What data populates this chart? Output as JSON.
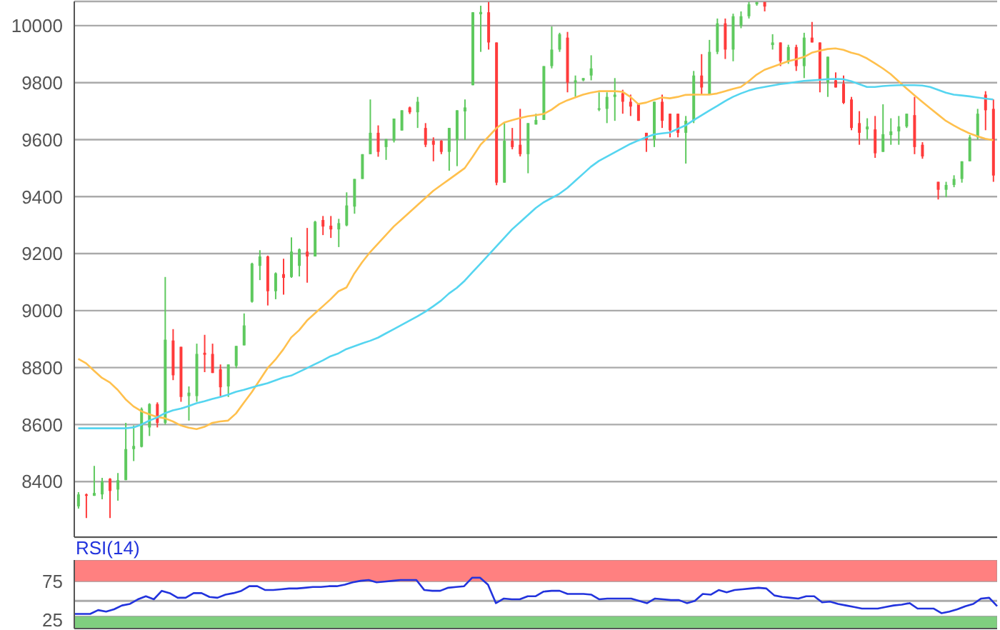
{
  "chart_data": [
    {
      "type": "candlestick",
      "categories": [
        null,
        null,
        null,
        null,
        null,
        null,
        null,
        null,
        null,
        null,
        null,
        null,
        null,
        null,
        null,
        null,
        null,
        null,
        null,
        null,
        null,
        null,
        null,
        null,
        null,
        null,
        null,
        null,
        null,
        null,
        null,
        null,
        null,
        null,
        null,
        null,
        null,
        null,
        null,
        null,
        null,
        null,
        null,
        null,
        null,
        null,
        null,
        null,
        null,
        null,
        null,
        null,
        null,
        null,
        null,
        null,
        null,
        null,
        null,
        null,
        null,
        null,
        null,
        null,
        null,
        null,
        null,
        null,
        null,
        null,
        null,
        null,
        null,
        null,
        null,
        null,
        null,
        null,
        null,
        null,
        null,
        null,
        null,
        null,
        null,
        null,
        null,
        null,
        null,
        null,
        null,
        null,
        null,
        null,
        null,
        null,
        null,
        null,
        null,
        null,
        null,
        null,
        null,
        null,
        null,
        null,
        null,
        null,
        null,
        null,
        null,
        null,
        null,
        null,
        null,
        null,
        null
      ],
      "ohlc": [
        [
          8313,
          8363,
          8305,
          8355
        ],
        [
          8355,
          8358,
          8272,
          8350
        ],
        [
          8350,
          8455,
          8350,
          8360
        ],
        [
          8355,
          8413,
          8338,
          8400
        ],
        [
          8410,
          8412,
          8272,
          8367
        ],
        [
          8372,
          8430,
          8333,
          8405
        ],
        [
          8405,
          8606,
          8405,
          8514
        ],
        [
          8514,
          8597,
          8472,
          8525
        ],
        [
          8522,
          8660,
          8520,
          8655
        ],
        [
          8590,
          8675,
          8560,
          8672
        ],
        [
          8672,
          8678,
          8590,
          8606
        ],
        [
          8606,
          9118,
          8600,
          8898
        ],
        [
          8895,
          8935,
          8756,
          8773
        ],
        [
          8873,
          8873,
          8680,
          8697
        ],
        [
          8700,
          8734,
          8614,
          8712
        ],
        [
          8700,
          8884,
          8680,
          8848
        ],
        [
          8852,
          8915,
          8784,
          8845
        ],
        [
          8848,
          8884,
          8781,
          8781
        ],
        [
          8794,
          8811,
          8697,
          8731
        ],
        [
          8734,
          8811,
          8697,
          8811
        ],
        [
          8806,
          8876,
          8798,
          8876
        ],
        [
          8878,
          8990,
          8878,
          8948
        ],
        [
          9031,
          9168,
          9028,
          9165
        ],
        [
          9157,
          9212,
          9107,
          9190
        ],
        [
          9190,
          9193,
          9018,
          9068
        ],
        [
          9068,
          9134,
          9040,
          9131
        ],
        [
          9128,
          9182,
          9056,
          9115
        ],
        [
          9118,
          9257,
          9115,
          9207
        ],
        [
          9157,
          9218,
          9120,
          9215
        ],
        [
          9207,
          9290,
          9098,
          9190
        ],
        [
          9190,
          9315,
          9190,
          9312
        ],
        [
          9318,
          9332,
          9265,
          9295
        ],
        [
          9298,
          9332,
          9255,
          9285
        ],
        [
          9285,
          9322,
          9223,
          9307
        ],
        [
          9299,
          9415,
          9296,
          9369
        ],
        [
          9365,
          9462,
          9340,
          9462
        ],
        [
          9462,
          9549,
          9462,
          9549
        ],
        [
          9549,
          9741,
          9549,
          9624
        ],
        [
          9624,
          9650,
          9540,
          9557
        ],
        [
          9574,
          9602,
          9529,
          9602
        ],
        [
          9596,
          9674,
          9590,
          9674
        ],
        [
          9632,
          9703,
          9632,
          9703
        ],
        [
          9713,
          9716,
          9690,
          9696
        ],
        [
          9696,
          9750,
          9641,
          9733
        ],
        [
          9641,
          9658,
          9574,
          9582
        ],
        [
          9596,
          9608,
          9524,
          9582
        ],
        [
          9596,
          9598,
          9549,
          9557
        ],
        [
          9557,
          9641,
          9491,
          9641
        ],
        [
          9599,
          9703,
          9507,
          9703
        ],
        [
          9699,
          9741,
          9599,
          9713
        ],
        [
          9791,
          10047,
          9791,
          10047
        ],
        [
          10040,
          10070,
          9908,
          10048
        ],
        [
          10047,
          10083,
          9916,
          9941
        ],
        [
          9941,
          9941,
          9440,
          9449
        ],
        [
          9449,
          9658,
          9449,
          9596
        ],
        [
          9596,
          9641,
          9566,
          9574
        ],
        [
          9582,
          9708,
          9541,
          9549
        ],
        [
          9549,
          9658,
          9482,
          9658
        ],
        [
          9653,
          9691,
          9653,
          9669
        ],
        [
          9669,
          9858,
          9669,
          9858
        ],
        [
          9858,
          9997,
          9850,
          9916
        ],
        [
          9916,
          9975,
          9908,
          9970
        ],
        [
          9958,
          9978,
          9766,
          9800
        ],
        [
          9800,
          9825,
          9750,
          9808
        ],
        [
          9808,
          9816,
          9805,
          9816
        ],
        [
          9825,
          9896,
          9808,
          9850
        ],
        [
          9705,
          9766,
          9700,
          9710
        ],
        [
          9708,
          9766,
          9658,
          9750
        ],
        [
          9750,
          9816,
          9666,
          9758
        ],
        [
          9763,
          9775,
          9691,
          9733
        ],
        [
          9733,
          9758,
          9683,
          9716
        ],
        [
          9724,
          9724,
          9666,
          9666
        ],
        [
          9624,
          9624,
          9557,
          9599
        ],
        [
          9599,
          9733,
          9574,
          9733
        ],
        [
          9733,
          9758,
          9641,
          9666
        ],
        [
          9691,
          9691,
          9608,
          9633
        ],
        [
          9691,
          9691,
          9608,
          9624
        ],
        [
          9624,
          9683,
          9516,
          9666
        ],
        [
          9666,
          9841,
          9658,
          9825
        ],
        [
          9825,
          9900,
          9758,
          9783
        ],
        [
          9758,
          9950,
          9758,
          9908
        ],
        [
          9908,
          10025,
          9900,
          10008
        ],
        [
          10008,
          10025,
          9883,
          9916
        ],
        [
          9916,
          10042,
          9875,
          10033
        ],
        [
          10000,
          10050,
          9991,
          10033
        ],
        [
          10033,
          10083,
          10025,
          10075
        ],
        [
          10075,
          10083,
          10070,
          10083
        ],
        [
          10083,
          10083,
          10050,
          10067
        ],
        [
          9932,
          9970,
          9916,
          9941
        ],
        [
          9941,
          9941,
          9858,
          9875
        ],
        [
          9875,
          9933,
          9866,
          9925
        ],
        [
          9925,
          9933,
          9841,
          9858
        ],
        [
          9858,
          9975,
          9816,
          9958
        ],
        [
          9958,
          10013,
          9941,
          9941
        ],
        [
          9941,
          9941,
          9766,
          9808
        ],
        [
          9800,
          9891,
          9750,
          9891
        ],
        [
          9808,
          9836,
          9783,
          9783
        ],
        [
          9796,
          9825,
          9725,
          9729
        ],
        [
          9741,
          9750,
          9633,
          9641
        ],
        [
          9658,
          9700,
          9582,
          9624
        ],
        [
          9636,
          9675,
          9600,
          9646
        ],
        [
          9636,
          9683,
          9536,
          9552
        ],
        [
          9557,
          9724,
          9557,
          9619
        ],
        [
          9616,
          9675,
          9582,
          9629
        ],
        [
          9629,
          9683,
          9582,
          9646
        ],
        [
          9646,
          9691,
          9641,
          9691
        ],
        [
          9686,
          9750,
          9549,
          9574
        ],
        [
          9582,
          9591,
          9533,
          9541
        ],
        null,
        [
          9452,
          9452,
          9390,
          9424
        ],
        [
          9424,
          9452,
          9398,
          9441
        ],
        [
          9441,
          9475,
          9433,
          9462
        ],
        [
          9462,
          9524,
          9449,
          9524
        ],
        [
          9524,
          9616,
          9524,
          9608
        ],
        [
          9608,
          9708,
          9600,
          9691
        ],
        [
          9758,
          9770,
          9633,
          9703
        ],
        [
          9708,
          9741,
          9452,
          9474
        ]
      ],
      "colors": [
        "#5ec95e",
        "#ff3b3b",
        "#5ec95e",
        "#5ec95e",
        "#ff3b3b",
        "#5ec95e",
        "#5ec95e",
        "#5ec95e",
        "#5ec95e",
        "#5ec95e",
        "#ff3b3b",
        "#5ec95e",
        "#ff3b3b",
        "#ff3b3b",
        "#5ec95e",
        "#5ec95e",
        "#ff3b3b",
        "#ff3b3b",
        "#ff3b3b",
        "#5ec95e",
        "#5ec95e",
        "#5ec95e",
        "#5ec95e",
        "#5ec95e",
        "#ff3b3b",
        "#5ec95e",
        "#ff3b3b",
        "#5ec95e",
        "#5ec95e",
        "#ff3b3b",
        "#5ec95e",
        "#ff3b3b",
        "#ff3b3b",
        "#5ec95e",
        "#5ec95e",
        "#5ec95e",
        "#5ec95e",
        "#5ec95e",
        "#ff3b3b",
        "#5ec95e",
        "#5ec95e",
        "#5ec95e",
        "#ff3b3b",
        "#5ec95e",
        "#ff3b3b",
        "#ff3b3b",
        "#ff3b3b",
        "#5ec95e",
        "#5ec95e",
        "#5ec95e",
        "#5ec95e",
        "#5ec95e",
        "#ff3b3b",
        "#ff3b3b",
        "#5ec95e",
        "#ff3b3b",
        "#ff3b3b",
        "#5ec95e",
        "#5ec95e",
        "#5ec95e",
        "#5ec95e",
        "#5ec95e",
        "#ff3b3b",
        "#5ec95e",
        "#5ec95e",
        "#5ec95e",
        "#5ec95e",
        "#5ec95e",
        "#5ec95e",
        "#ff3b3b",
        "#ff3b3b",
        "#ff3b3b",
        "#ff3b3b",
        "#5ec95e",
        "#ff3b3b",
        "#ff3b3b",
        "#ff3b3b",
        "#5ec95e",
        "#5ec95e",
        "#ff3b3b",
        "#5ec95e",
        "#5ec95e",
        "#ff3b3b",
        "#5ec95e",
        "#5ec95e",
        "#5ec95e",
        "#5ec95e",
        "#ff3b3b",
        "#5ec95e",
        "#ff3b3b",
        "#5ec95e",
        "#ff3b3b",
        "#5ec95e",
        "#ff3b3b",
        "#ff3b3b",
        "#5ec95e",
        "#ff3b3b",
        "#ff3b3b",
        "#ff3b3b",
        "#ff3b3b",
        "#5ec95e",
        "#ff3b3b",
        "#5ec95e",
        "#5ec95e",
        "#5ec95e",
        "#5ec95e",
        "#ff3b3b",
        "#ff3b3b",
        null,
        "#ff3b3b",
        "#5ec95e",
        "#5ec95e",
        "#5ec95e",
        "#5ec95e",
        "#5ec95e",
        "#ff3b3b",
        "#ff3b3b"
      ],
      "series": [
        {
          "type": "line",
          "color": "#ffc04d",
          "values": [
            8831,
            8815,
            8789,
            8764,
            8748,
            8722,
            8689,
            8664,
            8647,
            8636,
            8627,
            8622,
            8611,
            8597,
            8589,
            8584,
            8592,
            8606,
            8611,
            8614,
            8639,
            8677,
            8714,
            8756,
            8798,
            8828,
            8864,
            8906,
            8931,
            8965,
            8990,
            9015,
            9040,
            9068,
            9081,
            9130,
            9170,
            9205,
            9235,
            9265,
            9295,
            9320,
            9345,
            9370,
            9395,
            9420,
            9440,
            9460,
            9480,
            9500,
            9540,
            9582,
            9610,
            9640,
            9660,
            9668,
            9676,
            9682,
            9686,
            9690,
            9705,
            9725,
            9738,
            9748,
            9758,
            9765,
            9770,
            9770,
            9770,
            9768,
            9750,
            9725,
            9730,
            9740,
            9748,
            9745,
            9750,
            9757,
            9758,
            9758,
            9758,
            9762,
            9770,
            9778,
            9785,
            9805,
            9828,
            9845,
            9855,
            9865,
            9875,
            9882,
            9890,
            9905,
            9912,
            9918,
            9920,
            9915,
            9905,
            9898,
            9885,
            9868,
            9850,
            9830,
            9805,
            9780,
            9756,
            9733,
            9710,
            9688,
            9666,
            9650,
            9635,
            9622,
            9612,
            9603,
            9598
          ]
        },
        {
          "type": "line",
          "color": "#55d5f0",
          "values": [
            8587,
            8587,
            8587,
            8587,
            8587,
            8587,
            8587,
            8590,
            8600,
            8614,
            8625,
            8640,
            8650,
            8656,
            8665,
            8675,
            8682,
            8690,
            8697,
            8705,
            8715,
            8722,
            8730,
            8738,
            8745,
            8755,
            8765,
            8772,
            8785,
            8798,
            8812,
            8825,
            8840,
            8850,
            8865,
            8875,
            8885,
            8894,
            8905,
            8920,
            8935,
            8950,
            8965,
            8980,
            8996,
            9015,
            9035,
            9060,
            9080,
            9105,
            9135,
            9165,
            9195,
            9225,
            9255,
            9285,
            9310,
            9335,
            9360,
            9380,
            9395,
            9410,
            9430,
            9455,
            9480,
            9505,
            9525,
            9540,
            9555,
            9570,
            9585,
            9597,
            9608,
            9618,
            9622,
            9625,
            9638,
            9650,
            9668,
            9685,
            9702,
            9718,
            9735,
            9750,
            9762,
            9772,
            9780,
            9785,
            9790,
            9795,
            9798,
            9802,
            9806,
            9808,
            9810,
            9812,
            9813,
            9812,
            9805,
            9795,
            9785,
            9785,
            9788,
            9790,
            9791,
            9791,
            9791,
            9790,
            9785,
            9775,
            9765,
            9758,
            9755,
            9752,
            9748,
            9744,
            9741
          ]
        }
      ],
      "ylim": [
        8205,
        10085
      ],
      "yticks": [
        8400,
        8600,
        8800,
        9000,
        9200,
        9400,
        9600,
        9800,
        10000
      ],
      "grid": "y",
      "tick_labels": "y"
    },
    {
      "type": "line",
      "title": "RSI(14)",
      "categories": [
        null,
        null,
        null,
        null,
        null,
        null,
        null,
        null,
        null,
        null,
        null,
        null,
        null,
        null,
        null,
        null,
        null,
        null,
        null,
        null,
        null,
        null,
        null,
        null,
        null,
        null,
        null,
        null,
        null,
        null,
        null,
        null,
        null,
        null,
        null,
        null,
        null,
        null,
        null,
        null,
        null,
        null,
        null,
        null,
        null,
        null,
        null,
        null,
        null,
        null,
        null,
        null,
        null,
        null,
        null,
        null,
        null,
        null,
        null,
        null,
        null,
        null,
        null,
        null,
        null,
        null,
        null,
        null,
        null,
        null,
        null,
        null,
        null,
        null,
        null,
        null,
        null,
        null,
        null,
        null,
        null,
        null,
        null,
        null,
        null,
        null,
        null,
        null,
        null,
        null,
        null,
        null,
        null,
        null,
        null,
        null,
        null,
        null,
        null,
        null,
        null,
        null,
        null,
        null,
        null,
        null,
        null,
        null,
        null,
        null,
        null,
        null,
        null,
        null,
        null,
        null,
        null
      ],
      "series": [
        {
          "color": "#2233dd",
          "values": [
            33,
            33,
            33,
            38,
            36,
            39,
            44,
            46,
            52,
            56,
            52,
            63,
            60,
            54,
            54,
            60,
            60,
            55,
            54,
            58,
            60,
            63,
            69,
            69,
            64,
            64,
            65,
            66,
            66,
            67,
            68,
            68,
            69,
            69,
            71,
            74,
            76,
            77,
            74,
            75,
            76,
            77,
            77,
            77,
            64,
            63,
            63,
            67,
            68,
            69,
            80,
            80,
            71,
            47,
            53,
            52,
            52,
            56,
            56,
            62,
            63,
            63,
            59,
            59,
            59,
            58,
            52,
            53,
            53,
            53,
            53,
            50,
            47,
            53,
            52,
            51,
            51,
            47,
            50,
            59,
            58,
            64,
            61,
            64,
            65,
            66,
            67,
            66,
            57,
            55,
            54,
            53,
            56,
            56,
            48,
            49,
            46,
            44,
            42,
            40,
            40,
            40,
            42,
            44,
            45,
            47,
            40,
            40,
            40,
            34,
            36,
            39,
            43,
            46,
            53,
            54,
            43
          ]
        }
      ],
      "ylim": [
        14,
        103
      ],
      "yticks": [
        25,
        75
      ],
      "tick_labels": "y",
      "bands": [
        {
          "axis": "y",
          "from": 75,
          "to": 103,
          "color": "#ff8080"
        },
        {
          "axis": "y",
          "from": 14,
          "to": 30,
          "color": "#7fcf7f"
        }
      ],
      "ref_lines": [
        {
          "axis": "y",
          "value": 50,
          "color": "#aaaaaa"
        }
      ]
    }
  ]
}
